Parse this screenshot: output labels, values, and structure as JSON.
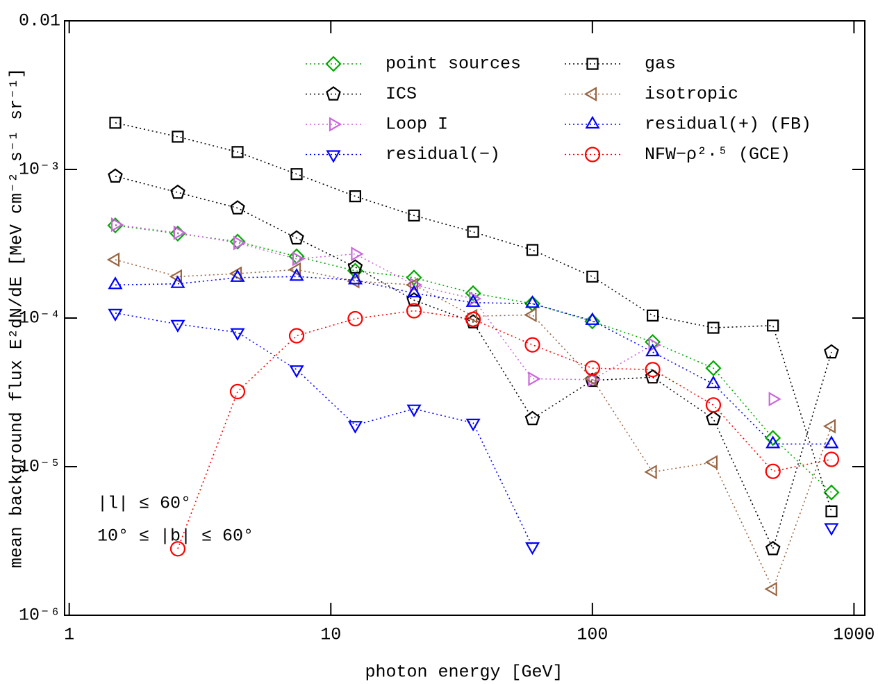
{
  "chart_data": {
    "type": "line",
    "x_label": "photon energy [GeV]",
    "y_label": "mean background flux E²dN/dE [MeV cm⁻² s⁻¹ sr⁻¹]",
    "annotations": [
      "|l| ≤ 60°",
      "10° ≤ |b| ≤ 60°"
    ],
    "log_x": true,
    "log_y": true,
    "xlim": [
      0.96,
      1100
    ],
    "xticks": [
      1,
      10,
      100,
      1000
    ],
    "ylim": [
      1e-06,
      0.01
    ],
    "yticks": [
      {
        "value": 1e-06,
        "label": "10⁻⁶"
      },
      {
        "value": 1e-05,
        "label": "10⁻⁵"
      },
      {
        "value": 0.0001,
        "label": "10⁻⁴"
      },
      {
        "value": 0.001,
        "label": "10⁻³"
      },
      0.01
    ],
    "x": [
      1.5,
      2.6,
      4.4,
      7.4,
      12.4,
      20.8,
      35,
      59,
      100,
      170,
      290,
      490,
      820
    ],
    "series": [
      {
        "name": "point sources",
        "color": "#00aa00",
        "marker": "diamond",
        "values": [
          0.00042,
          0.00037,
          0.000327,
          0.00026,
          0.000208,
          0.000187,
          0.000147,
          0.000125,
          9.5e-05,
          6.9e-05,
          4.6e-05,
          1.56e-05,
          6.7e-06
        ]
      },
      {
        "name": "ICS",
        "color": "#000000",
        "marker": "pentagon",
        "values": [
          0.0009,
          0.0007,
          0.00055,
          0.000345,
          0.00022,
          0.000132,
          9.4e-05,
          2.1e-05,
          3.8e-05,
          4e-05,
          2.1e-05,
          2.8e-06,
          5.9e-05
        ]
      },
      {
        "name": "Loop I",
        "color": "#cc66dd",
        "marker": "right",
        "values": [
          0.000425,
          0.000375,
          0.00032,
          0.00025,
          0.00027,
          0.000167,
          0.000135,
          3.9e-05,
          3.85e-05,
          6.6e-05,
          null,
          2.85e-05,
          null
        ]
      },
      {
        "name": "residual(−)",
        "color": "#0000ff",
        "marker": "down",
        "values": [
          0.000108,
          9.1e-05,
          8e-05,
          4.5e-05,
          1.9e-05,
          2.45e-05,
          1.97e-05,
          2.9e-06,
          null,
          null,
          null,
          null,
          3.9e-06
        ]
      },
      {
        "name": "gas",
        "color": "#000000",
        "marker": "square",
        "values": [
          0.00206,
          0.00166,
          0.00131,
          0.00093,
          0.00066,
          0.00049,
          0.00038,
          0.000287,
          0.00019,
          0.000104,
          8.6e-05,
          8.9e-05,
          5e-06
        ]
      },
      {
        "name": "isotropic",
        "color": "#996644",
        "marker": "left",
        "values": [
          0.000247,
          0.00019,
          0.000199,
          0.000212,
          0.000177,
          0.000167,
          0.000103,
          0.000105,
          3.9e-05,
          9.2e-06,
          1.07e-05,
          1.5e-06,
          1.87e-05
        ]
      },
      {
        "name": "residual(+) (FB)",
        "color": "#0000ff",
        "marker": "up",
        "values": [
          0.000167,
          0.00017,
          0.000187,
          0.00019,
          0.00018,
          0.000147,
          0.000127,
          0.000125,
          9.6e-05,
          5.9e-05,
          3.6e-05,
          1.42e-05,
          1.42e-05
        ]
      },
      {
        "name": "NFW−ρ²·⁵ (GCE)",
        "color": "#ff0000",
        "marker": "circle",
        "values": [
          null,
          2.8e-06,
          3.2e-05,
          7.6e-05,
          9.9e-05,
          0.000112,
          9.8e-05,
          6.6e-05,
          4.6e-05,
          4.5e-05,
          2.6e-05,
          9.3e-06,
          1.12e-05
        ]
      }
    ]
  }
}
